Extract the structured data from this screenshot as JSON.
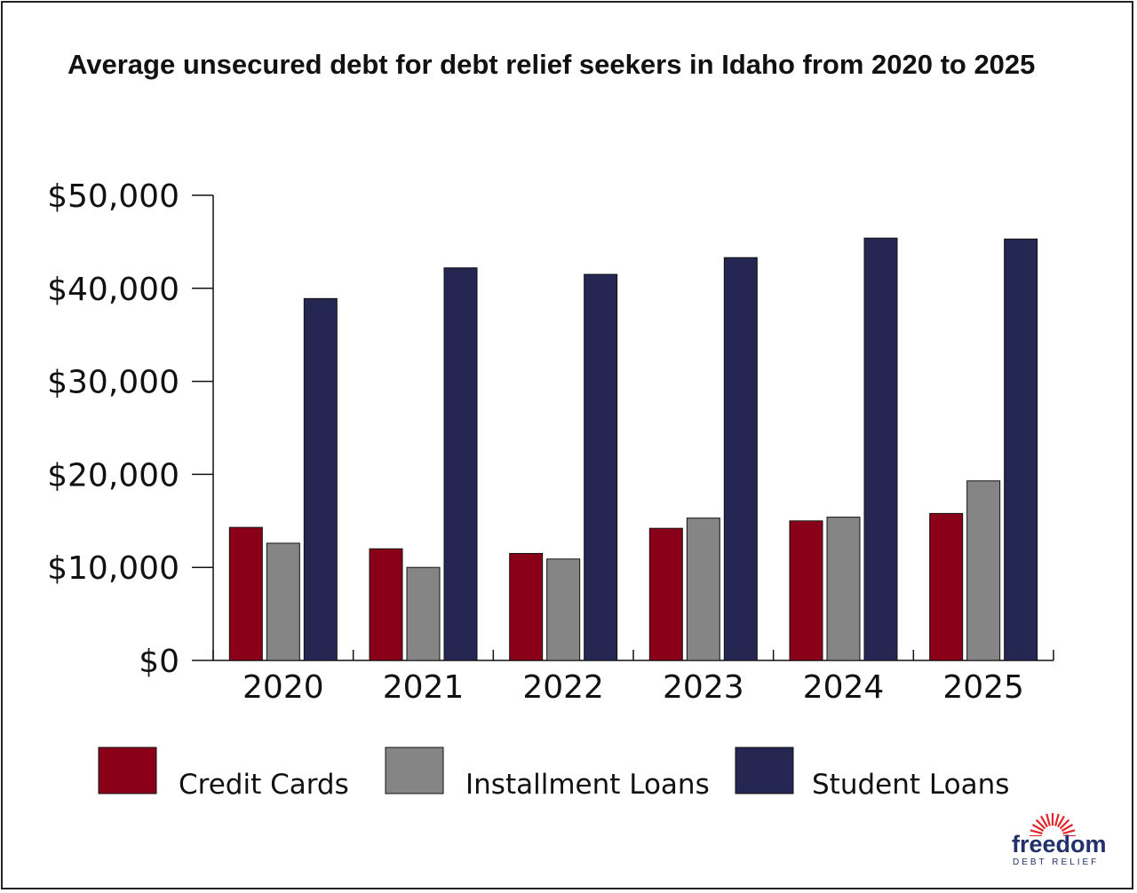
{
  "chart_data": {
    "type": "bar",
    "title": "Average unsecured debt for debt relief seekers in Idaho from 2020 to 2025",
    "categories": [
      "2020",
      "2021",
      "2022",
      "2023",
      "2024",
      "2025"
    ],
    "series": [
      {
        "name": "Credit Cards",
        "color": "#8a0019",
        "values": [
          14300,
          12000,
          11500,
          14200,
          15000,
          15800
        ]
      },
      {
        "name": "Installment Loans",
        "color": "#858585",
        "values": [
          12600,
          10000,
          10900,
          15300,
          15400,
          19300
        ]
      },
      {
        "name": "Student Loans",
        "color": "#262653",
        "values": [
          38900,
          42200,
          41500,
          43300,
          45400,
          45300
        ]
      }
    ],
    "y_ticks": [
      "$0",
      "$10,000",
      "$20,000",
      "$30,000",
      "$40,000",
      "$50,000"
    ],
    "ylim": [
      0,
      50000
    ],
    "grid": false,
    "legend_position": "bottom"
  },
  "logo": {
    "word": "freedom",
    "sub": "DEBT RELIEF",
    "icon": "sunburst-icon",
    "color": "#22306b",
    "accent": "#e0262b"
  }
}
